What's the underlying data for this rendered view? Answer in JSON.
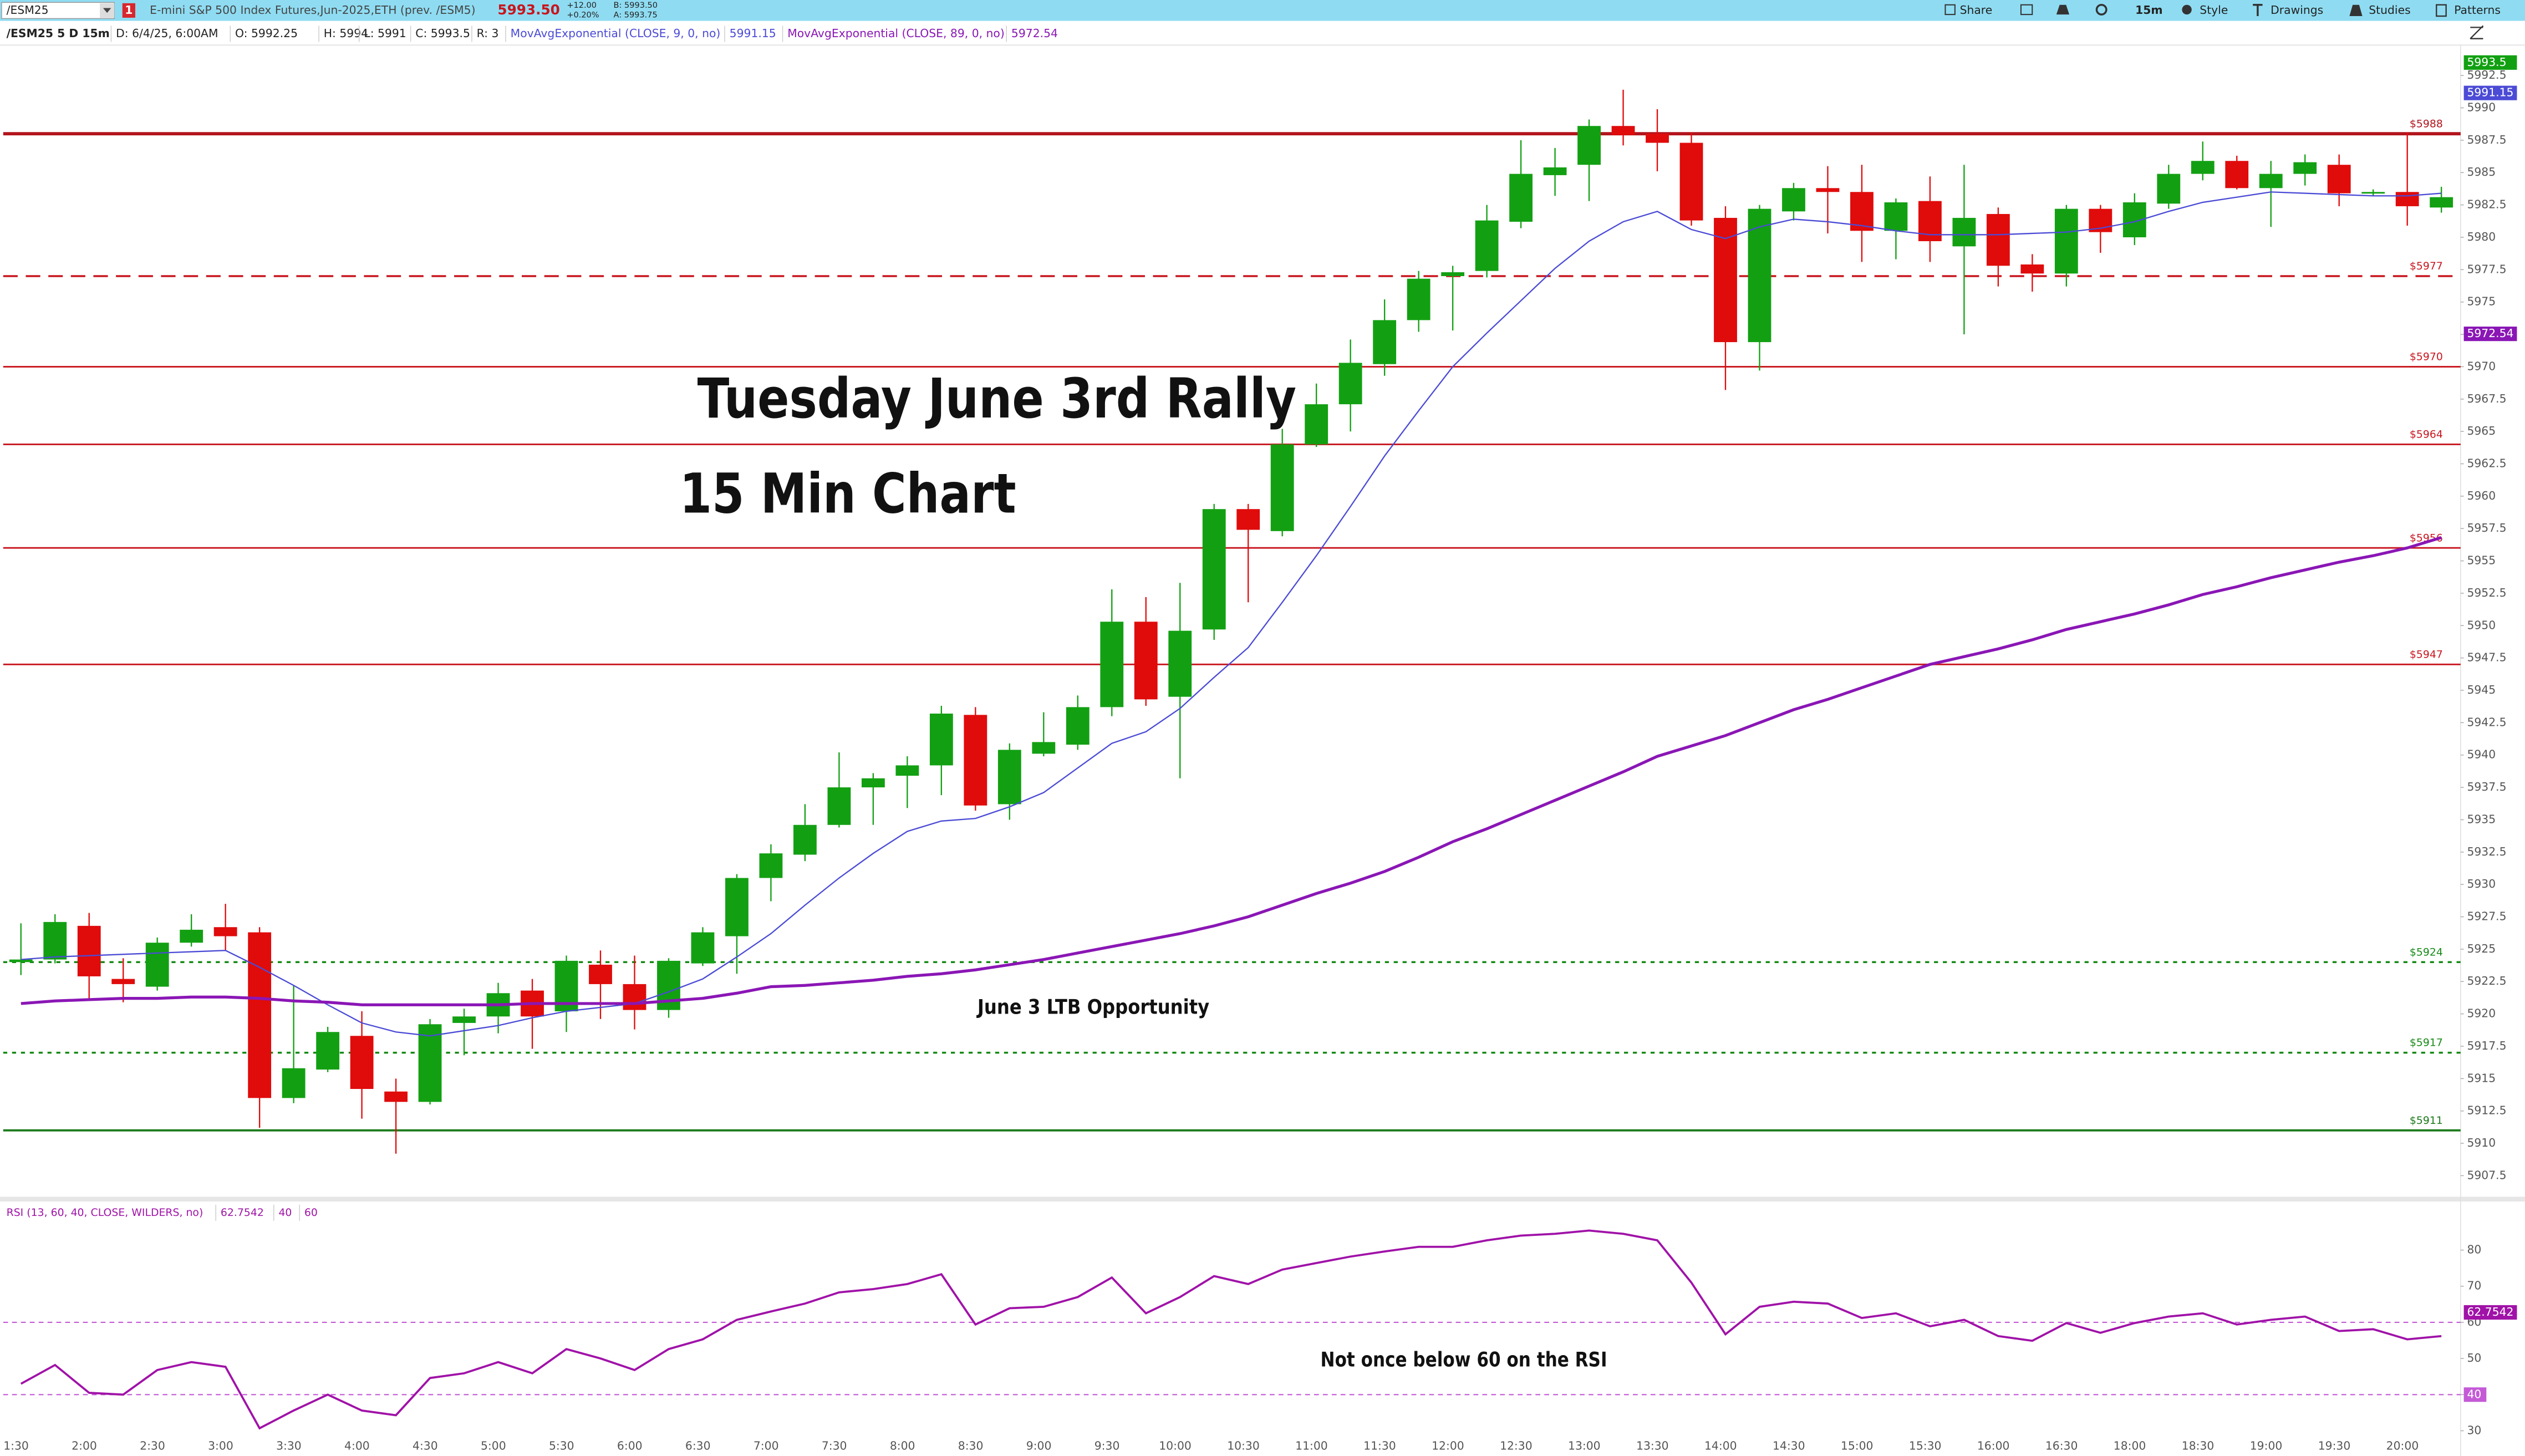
{
  "toolbar": {
    "symbol": "/ESM25",
    "alert_count": "1",
    "description": "E-mini S&P 500 Index Futures,Jun-2025,ETH (prev. /ESM5)",
    "last": "5993.50",
    "change": "+12.00",
    "change_pct": "+0.20%",
    "bid": "B: 5993.50",
    "ask": "A: 5993.75",
    "buttons": [
      "Share",
      "15m",
      "Style",
      "Drawings",
      "Studies",
      "Patterns"
    ]
  },
  "header": {
    "symbol_info": "/ESM25 5 D 15m",
    "fields": [
      "D: 6/4/25, 6:00AM",
      "O: 5992.25",
      "H: 5994",
      "L: 5991",
      "C: 5993.5",
      "R: 3"
    ]
  },
  "chart_data": {
    "type": "candlestick",
    "grid": false,
    "up_color": "#12a012",
    "down_color": "#e00b0b",
    "categories": [
      "1:30",
      null,
      "2:00",
      null,
      "2:30",
      null,
      "3:00",
      null,
      "3:30",
      null,
      "4:00",
      null,
      "4:30",
      null,
      "5:00",
      null,
      "5:30",
      null,
      "6:00",
      null,
      "6:30",
      null,
      "7:00",
      null,
      "7:30",
      null,
      "8:00",
      null,
      "8:30",
      null,
      "9:00",
      null,
      "9:30",
      null,
      "10:00",
      null,
      "10:30",
      null,
      "11:00",
      null,
      "11:30",
      null,
      "12:00",
      null,
      "12:30",
      null,
      "13:00",
      null,
      "13:30",
      null,
      "14:00",
      null,
      "14:30",
      null,
      "15:00",
      null,
      "15:30",
      null,
      "16:00",
      null,
      "16:30",
      null,
      "18:00",
      null,
      "18:30",
      null,
      "19:00",
      null,
      "19:30",
      null,
      "20:00",
      null
    ],
    "open": [
      5924.0,
      5924.2,
      5926.8,
      5922.7,
      5922.1,
      5925.5,
      5926.7,
      5926.3,
      5913.5,
      5915.7,
      5918.3,
      5914.0,
      5913.2,
      5919.3,
      5919.8,
      5921.8,
      5920.2,
      5923.8,
      5922.3,
      5920.3,
      5923.9,
      5926.0,
      5930.5,
      5932.3,
      5934.6,
      5937.5,
      5938.4,
      5939.2,
      5943.1,
      5936.2,
      5940.1,
      5940.8,
      5943.7,
      5950.3,
      5944.5,
      5949.7,
      5959.0,
      5957.3,
      5964.0,
      5967.1,
      5970.2,
      5973.6,
      5977.0,
      5977.4,
      5981.2,
      5984.8,
      5985.6,
      5988.6,
      5988.0,
      5987.3,
      5981.5,
      5971.9,
      5982.0,
      5983.8,
      5983.5,
      5980.5,
      5982.8,
      5979.3,
      5981.8,
      5977.9,
      5977.2,
      5982.2,
      5980.0,
      5982.6,
      5984.9,
      5985.9,
      5983.8,
      5984.9,
      5985.6,
      5983.4,
      5983.5,
      5982.3
    ],
    "high": [
      5927.0,
      5927.7,
      5927.8,
      5924.3,
      5925.9,
      5927.7,
      5928.5,
      5926.7,
      5922.2,
      5919.0,
      5920.2,
      5915.0,
      5919.6,
      5920.4,
      5922.4,
      5922.7,
      5924.5,
      5924.9,
      5924.5,
      5924.3,
      5926.7,
      5930.8,
      5933.1,
      5936.2,
      5940.2,
      5938.6,
      5939.9,
      5943.8,
      5943.7,
      5940.9,
      5943.3,
      5944.6,
      5952.8,
      5952.2,
      5953.3,
      5959.4,
      5959.4,
      5965.2,
      5968.7,
      5972.1,
      5975.2,
      5977.4,
      5977.8,
      5982.5,
      5987.5,
      5986.9,
      5989.1,
      5991.4,
      5989.9,
      5988.1,
      5982.4,
      5982.5,
      5984.2,
      5985.5,
      5985.6,
      5983.0,
      5984.7,
      5985.6,
      5982.3,
      5978.7,
      5982.5,
      5982.5,
      5983.4,
      5985.6,
      5987.4,
      5986.3,
      5985.9,
      5986.4,
      5986.4,
      5983.7,
      5988.1,
      5983.9
    ],
    "low": [
      5923.0,
      5923.9,
      5921.2,
      5920.9,
      5921.8,
      5925.2,
      5924.9,
      5911.2,
      5913.1,
      5915.5,
      5911.9,
      5909.2,
      5913.0,
      5916.8,
      5918.5,
      5917.3,
      5918.6,
      5919.6,
      5918.8,
      5919.7,
      5923.7,
      5923.1,
      5928.7,
      5931.8,
      5934.4,
      5934.6,
      5935.9,
      5936.9,
      5935.7,
      5935.0,
      5939.9,
      5940.4,
      5943.0,
      5943.8,
      5938.2,
      5948.9,
      5951.8,
      5956.9,
      5963.8,
      5965.0,
      5969.3,
      5972.7,
      5972.8,
      5976.9,
      5980.7,
      5983.2,
      5982.8,
      5987.1,
      5985.1,
      5980.9,
      5968.2,
      5969.7,
      5981.3,
      5980.3,
      5978.1,
      5978.3,
      5978.1,
      5972.5,
      5976.2,
      5975.8,
      5976.2,
      5978.8,
      5979.4,
      5982.2,
      5984.4,
      5983.7,
      5980.8,
      5984.0,
      5982.4,
      5983.2,
      5980.9,
      5981.9
    ],
    "close": [
      5924.2,
      5927.1,
      5922.9,
      5922.3,
      5925.5,
      5926.5,
      5926.0,
      5913.5,
      5915.8,
      5918.6,
      5914.2,
      5913.2,
      5919.2,
      5919.8,
      5921.6,
      5919.8,
      5924.1,
      5922.3,
      5920.3,
      5924.1,
      5926.3,
      5930.5,
      5932.4,
      5934.6,
      5937.5,
      5938.2,
      5939.2,
      5943.2,
      5936.1,
      5940.4,
      5941.0,
      5943.7,
      5950.3,
      5944.3,
      5949.6,
      5959.0,
      5957.4,
      5964.0,
      5967.1,
      5970.3,
      5973.6,
      5976.8,
      5977.3,
      5981.3,
      5984.9,
      5985.4,
      5988.6,
      5987.9,
      5987.3,
      5981.3,
      5971.9,
      5982.2,
      5983.8,
      5983.5,
      5980.5,
      5982.7,
      5979.7,
      5981.5,
      5977.8,
      5977.2,
      5982.2,
      5980.4,
      5982.7,
      5984.9,
      5985.9,
      5983.8,
      5984.9,
      5985.8,
      5983.4,
      5983.5,
      5982.4,
      5983.1
    ],
    "overlays": [
      {
        "name": "MovAvgExponential (CLOSE, 9, 0, no)",
        "color": "#4b4bd6",
        "width": 0.8,
        "last_value": 5991.15,
        "values": [
          5924.2,
          5924.4,
          5924.5,
          5924.6,
          5924.7,
          5924.8,
          5924.9,
          5923.6,
          5922.2,
          5920.7,
          5919.3,
          5918.6,
          5918.3,
          5918.7,
          5919.1,
          5919.7,
          5920.2,
          5920.5,
          5920.8,
          5921.7,
          5922.7,
          5924.4,
          5926.2,
          5928.4,
          5930.5,
          5932.4,
          5934.1,
          5934.9,
          5935.1,
          5936.0,
          5937.1,
          5939.0,
          5940.9,
          5941.8,
          5943.6,
          5946.0,
          5948.3,
          5951.8,
          5955.4,
          5959.2,
          5963.1,
          5966.6,
          5970.0,
          5972.6,
          5975.1,
          5977.6,
          5979.7,
          5981.2,
          5982.0,
          5980.6,
          5979.9,
          5980.8,
          5981.4,
          5981.2,
          5980.9,
          5980.5,
          5980.2,
          5980.2,
          5980.2,
          5980.3,
          5980.4,
          5980.7,
          5981.2,
          5982.0,
          5982.7,
          5983.1,
          5983.5,
          5983.4,
          5983.3,
          5983.2,
          5983.2,
          5983.4
        ]
      },
      {
        "name": "MovAvgExponential (CLOSE, 89, 0, no)",
        "color": "#8a16b5",
        "width": 1.8,
        "last_value": 5972.54,
        "values": [
          5920.8,
          5921.0,
          5921.1,
          5921.2,
          5921.2,
          5921.3,
          5921.3,
          5921.2,
          5921.0,
          5920.9,
          5920.7,
          5920.7,
          5920.7,
          5920.7,
          5920.7,
          5920.8,
          5920.8,
          5920.8,
          5920.8,
          5921.0,
          5921.2,
          5921.6,
          5922.1,
          5922.2,
          5922.4,
          5922.6,
          5922.9,
          5923.1,
          5923.4,
          5923.8,
          5924.2,
          5924.7,
          5925.2,
          5925.7,
          5926.2,
          5926.8,
          5927.5,
          5928.4,
          5929.3,
          5930.1,
          5931.0,
          5932.1,
          5933.3,
          5934.3,
          5935.4,
          5936.5,
          5937.6,
          5938.7,
          5939.9,
          5940.7,
          5941.5,
          5942.5,
          5943.5,
          5944.3,
          5945.2,
          5946.1,
          5947.0,
          5947.6,
          5948.2,
          5948.9,
          5949.7,
          5950.3,
          5950.9,
          5951.6,
          5952.4,
          5953.0,
          5953.7,
          5954.3,
          5954.9,
          5955.4,
          5956.0,
          5956.8
        ]
      }
    ],
    "last_price": 5993.5,
    "last_price_color": "#12a012",
    "levels": [
      {
        "value": 5988,
        "label": "$5988",
        "color": "#b3141c",
        "style": "solid",
        "width": 2
      },
      {
        "value": 5977,
        "label": "$5977",
        "color": "#c8161e",
        "style": "dashed",
        "width": 1.2
      },
      {
        "value": 5970,
        "label": "$5970",
        "color": "#c8161e",
        "style": "solid",
        "width": 1
      },
      {
        "value": 5964,
        "label": "$5964",
        "color": "#c8161e",
        "style": "solid",
        "width": 1
      },
      {
        "value": 5956,
        "label": "$5956",
        "color": "#c8161e",
        "style": "solid",
        "width": 1
      },
      {
        "value": 5947,
        "label": "$5947",
        "color": "#c8161e",
        "style": "solid",
        "width": 1
      },
      {
        "value": 5924,
        "label": "$5924",
        "color": "#168a16",
        "style": "dotted",
        "width": 1.2
      },
      {
        "value": 5917,
        "label": "$5917",
        "color": "#168a16",
        "style": "dotted",
        "width": 1.2
      },
      {
        "value": 5911,
        "label": "$5911",
        "color": "#1a7a1a",
        "style": "solid",
        "width": 1.3
      }
    ],
    "ylim": [
      5906,
      5994.6
    ],
    "yticks": [
      5907.5,
      5910,
      5912.5,
      5915,
      5917.5,
      5920,
      5922.5,
      5925,
      5927.5,
      5930,
      5932.5,
      5935,
      5937.5,
      5940,
      5942.5,
      5945,
      5947.5,
      5950,
      5952.5,
      5955,
      5957.5,
      5960,
      5962.5,
      5965,
      5967.5,
      5970,
      5972.5,
      5975,
      5977.5,
      5980,
      5982.5,
      5985,
      5987.5,
      5990,
      5992.5
    ],
    "annotations": [
      {
        "text": "Tuesday June 3rd Rally"
      },
      {
        "text": "15 Min Chart"
      },
      {
        "text": "June 3 LTB Opportunity"
      },
      {
        "text": "Not once below 60 on the RSI"
      }
    ],
    "rsi": {
      "type": "line",
      "name": "RSI (13, 60, 40, CLOSE, WILDERS, no)",
      "color": "#a012a8",
      "level_color": "#c45ad6",
      "last_value": 62.7542,
      "levels": [
        40,
        60
      ],
      "ylim": [
        24.8,
        86.3
      ],
      "yticks": [
        30,
        40,
        50,
        60,
        70,
        80
      ],
      "values": [
        43,
        48.2,
        40.5,
        40,
        46.8,
        49,
        47.7,
        30.7,
        35.6,
        40,
        35.6,
        34.3,
        44.6,
        45.9,
        49,
        45.9,
        52.6,
        50,
        46.8,
        52.6,
        55.3,
        60.7,
        63,
        65.2,
        68.3,
        69.2,
        70.6,
        73.3,
        59.4,
        63.9,
        64.3,
        67,
        72.4,
        62.5,
        67,
        72.8,
        70.6,
        74.6,
        76.4,
        78.2,
        79.6,
        80.9,
        80.9,
        82.7,
        84,
        84.5,
        85.4,
        84.5,
        82.7,
        71,
        56.7,
        64.3,
        65.7,
        65.2,
        61.2,
        62.5,
        58.9,
        60.7,
        56.2,
        54.9,
        59.8,
        57.1,
        59.8,
        61.6,
        62.5,
        59.4,
        60.7,
        61.6,
        57.6,
        58.1,
        55.3,
        56.2
      ]
    }
  }
}
